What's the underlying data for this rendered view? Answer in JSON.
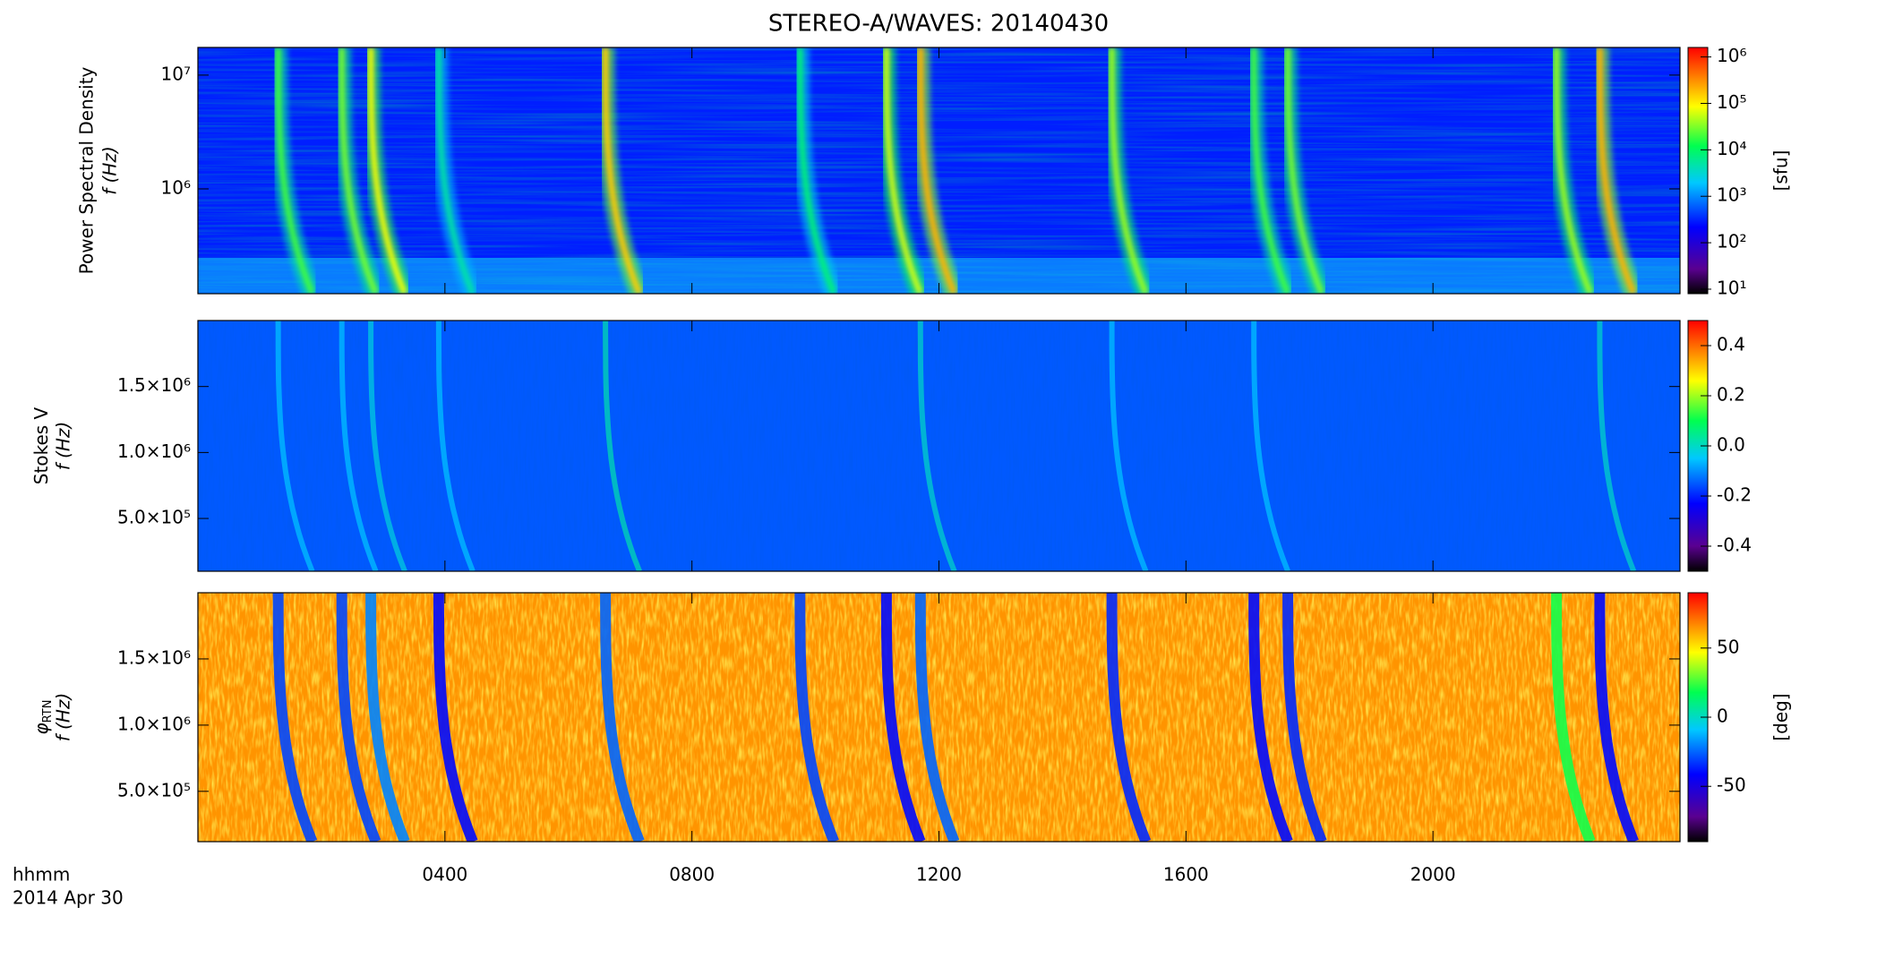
{
  "chart_data": [
    {
      "type": "heatmap",
      "title": "STEREO-A/WAVES: 20140430",
      "ylabel": "Power Spectral Density",
      "ylabel2": "f (Hz)",
      "yscale": "log",
      "ylim": [
        120000,
        17500000
      ],
      "yticks": [
        {
          "value": 1000000,
          "label": "10⁶"
        },
        {
          "value": 10000000,
          "label": "10⁷"
        }
      ],
      "xlim": [
        0,
        24
      ],
      "cscale": "log",
      "clim": [
        8,
        1600000
      ],
      "cticks": [
        {
          "value": 10,
          "label": "10¹"
        },
        {
          "value": 100,
          "label": "10²"
        },
        {
          "value": 1000,
          "label": "10³"
        },
        {
          "value": 10000,
          "label": "10⁴"
        },
        {
          "value": 100000,
          "label": "10⁵"
        },
        {
          "value": 1000000,
          "label": "10⁶"
        }
      ],
      "clabel": "[sfu]",
      "background": 300,
      "bursts": {
        "times": [
          1.3,
          2.33,
          2.8,
          3.9,
          6.6,
          9.75,
          11.15,
          11.7,
          14.8,
          17.1,
          17.65,
          22.0,
          22.7
        ],
        "values": [
          20000,
          30000,
          80000,
          5000,
          150000,
          8000,
          60000,
          200000,
          40000,
          20000,
          30000,
          40000,
          200000
        ]
      }
    },
    {
      "type": "heatmap",
      "ylabel": "Stokes V",
      "ylabel2": "f (Hz)",
      "yscale": "linear",
      "ylim": [
        100000,
        2000000
      ],
      "yticks": [
        {
          "value": 500000,
          "label": "5.0×10⁵"
        },
        {
          "value": 1000000,
          "label": "1.0×10⁶"
        },
        {
          "value": 1500000,
          "label": "1.5×10⁶"
        }
      ],
      "xlim": [
        0,
        24
      ],
      "cscale": "linear",
      "clim": [
        -0.5,
        0.5
      ],
      "cticks": [
        -0.4,
        -0.2,
        {
          "value": 0,
          "label": "0.0"
        },
        0.2,
        0.4
      ],
      "background": -0.15,
      "bursts": {
        "times": [
          1.3,
          2.33,
          2.8,
          3.9,
          6.6,
          11.7,
          14.8,
          17.1,
          22.7
        ],
        "values": [
          -0.05,
          -0.05,
          -0.02,
          -0.05,
          0.02,
          0.0,
          -0.05,
          -0.05,
          0.0
        ]
      }
    },
    {
      "type": "heatmap",
      "ylabel": "φ",
      "ylabel_sub": "RTN",
      "ylabel2": "f (Hz)",
      "yscale": "linear",
      "ylim": [
        120000,
        2000000
      ],
      "yticks": [
        {
          "value": 500000,
          "label": "5.0×10⁵"
        },
        {
          "value": 1000000,
          "label": "1.0×10⁶"
        },
        {
          "value": 1500000,
          "label": "1.5×10⁶"
        }
      ],
      "xlim": [
        0,
        24
      ],
      "xticks": [
        {
          "value": 4,
          "label": "0400"
        },
        {
          "value": 8,
          "label": "0800"
        },
        {
          "value": 12,
          "label": "1200"
        },
        {
          "value": 16,
          "label": "1600"
        },
        {
          "value": 20,
          "label": "2000"
        }
      ],
      "xlabel": "hhmm",
      "xlabel2": "2014 Apr 30",
      "cscale": "linear",
      "clim": [
        -90,
        90
      ],
      "cticks": [
        -50,
        0,
        50
      ],
      "clabel": "[deg]",
      "background": 65,
      "bursts": {
        "times": [
          1.3,
          2.33,
          2.8,
          3.9,
          6.6,
          9.75,
          11.15,
          11.7,
          14.8,
          17.1,
          17.65,
          22.0,
          22.7
        ],
        "values": [
          -30,
          -30,
          -20,
          -40,
          -25,
          -30,
          -40,
          -25,
          -35,
          -40,
          -35,
          20,
          -40
        ]
      }
    }
  ]
}
